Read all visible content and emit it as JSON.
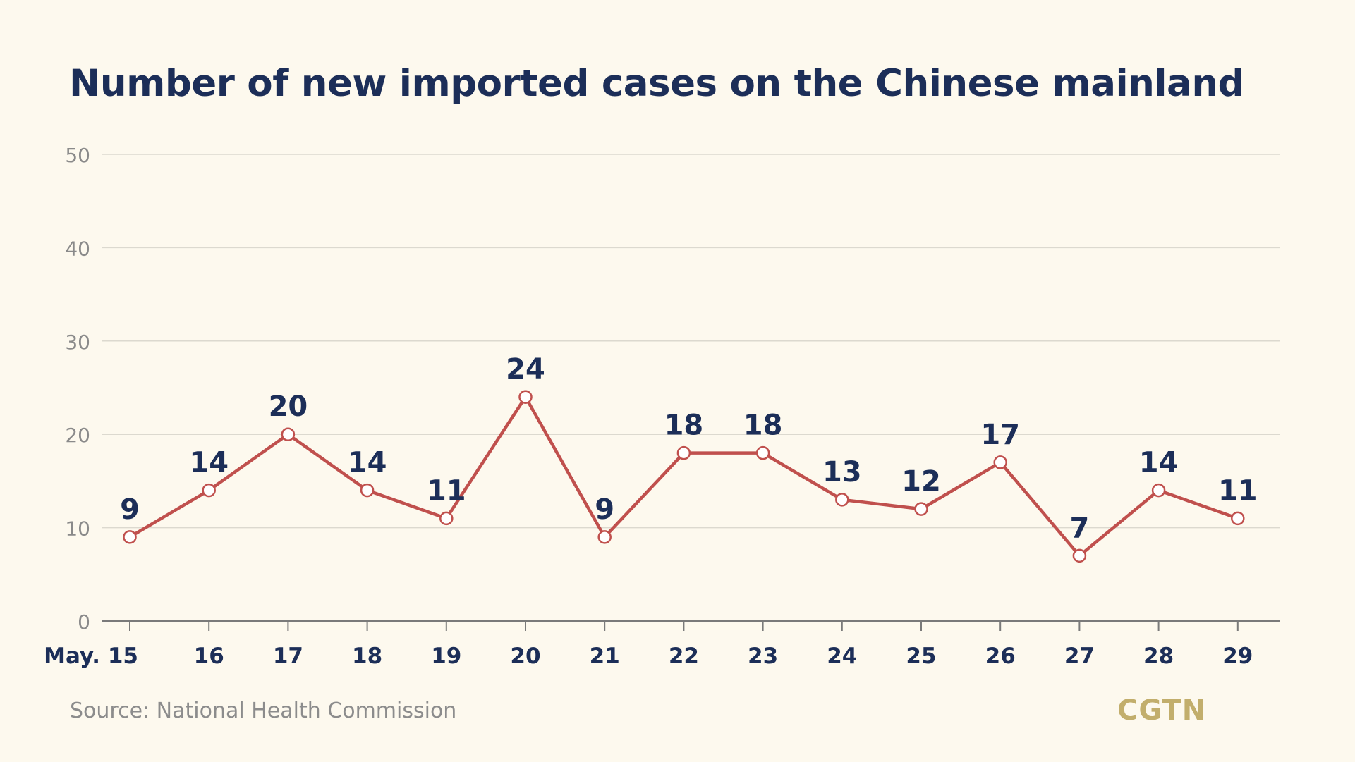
{
  "chart_data": {
    "type": "line",
    "title": "Number of new imported cases on the Chinese mainland",
    "categories": [
      "May. 15",
      "16",
      "17",
      "18",
      "19",
      "20",
      "21",
      "22",
      "23",
      "24",
      "25",
      "26",
      "27",
      "28",
      "29"
    ],
    "series": [
      {
        "values": [
          9,
          14,
          20,
          14,
          11,
          24,
          9,
          18,
          18,
          13,
          12,
          17,
          7,
          14,
          11
        ],
        "color": "#c0504d"
      }
    ],
    "data_labels": [
      "9",
      "14",
      "20",
      "14",
      "11",
      "24",
      "9",
      "18",
      "18",
      "13",
      "12",
      "17",
      "7",
      "14",
      "11"
    ],
    "ylim": [
      0,
      50
    ],
    "yticks": [
      0,
      10,
      20,
      30,
      40,
      50
    ],
    "ytick_labels": [
      "0",
      "10",
      "20",
      "30",
      "40",
      "50"
    ],
    "grid": true,
    "xlabel": "",
    "ylabel": ""
  },
  "footer": {
    "source": "Source: National Health Commission",
    "logo": "CGTN"
  },
  "colors": {
    "background": "#fdf9ee",
    "title": "#1c2e58",
    "line": "#c0504d",
    "gridline": "#dcd9cf",
    "axis": "#7a7a7a",
    "tick_label": "#8a8a8a",
    "logo": "#c2ae6c"
  }
}
